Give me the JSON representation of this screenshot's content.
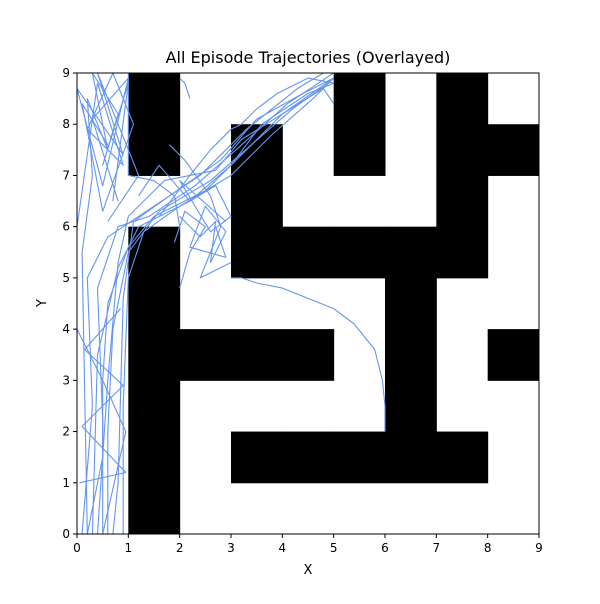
{
  "chart_data": {
    "type": "line",
    "title": "All Episode Trajectories (Overlayed)",
    "xlabel": "X",
    "ylabel": "Y",
    "xlim": [
      0,
      9
    ],
    "ylim": [
      0,
      9
    ],
    "xticks": [
      "0",
      "1",
      "2",
      "3",
      "4",
      "5",
      "6",
      "7",
      "8",
      "9"
    ],
    "yticks": [
      "0",
      "1",
      "2",
      "3",
      "4",
      "5",
      "6",
      "7",
      "8",
      "9"
    ],
    "grid": false,
    "colors": {
      "trajectory": "#6495ED",
      "wall": "#000000",
      "free": "#ffffff"
    },
    "walls": [
      [
        1,
        7,
        1,
        2
      ],
      [
        1,
        8,
        1,
        2
      ],
      [
        1,
        5,
        1,
        2
      ],
      [
        1,
        4,
        1,
        2
      ],
      [
        1,
        3,
        1,
        2
      ],
      [
        1,
        2,
        1,
        2
      ],
      [
        1,
        1,
        1,
        2
      ],
      [
        1,
        0,
        1,
        2
      ],
      [
        3,
        7,
        3,
        4
      ],
      [
        3,
        6,
        3,
        4
      ],
      [
        3,
        5,
        3,
        4
      ],
      [
        4,
        5,
        4,
        5
      ],
      [
        5,
        5,
        5,
        6
      ],
      [
        6,
        5,
        6,
        7
      ],
      [
        7,
        5,
        7,
        8
      ],
      [
        5,
        8,
        5,
        6
      ],
      [
        5,
        7,
        5,
        6
      ],
      [
        7,
        8,
        7,
        8
      ],
      [
        7,
        7,
        7,
        8
      ],
      [
        7,
        6,
        7,
        8
      ],
      [
        8,
        7,
        8,
        9
      ],
      [
        6,
        4,
        6,
        7
      ],
      [
        6,
        3,
        6,
        7
      ],
      [
        6,
        2,
        6,
        7
      ],
      [
        6,
        1,
        6,
        7
      ],
      [
        2,
        3,
        2,
        3
      ],
      [
        3,
        3,
        3,
        4
      ],
      [
        4,
        3,
        4,
        5
      ],
      [
        8,
        3,
        8,
        9
      ],
      [
        3,
        1,
        3,
        4
      ],
      [
        4,
        1,
        4,
        5
      ],
      [
        5,
        1,
        5,
        6
      ],
      [
        7,
        1,
        7,
        8
      ]
    ],
    "trajectories": [
      {
        "x": [
          0.2,
          0.5,
          0.5,
          0.6,
          1.0,
          1.5,
          2.5,
          3.2,
          4.0,
          5.0
        ],
        "y": [
          0.0,
          1.5,
          3.0,
          4.5,
          5.6,
          6.2,
          6.7,
          7.4,
          8.2,
          8.9
        ]
      },
      {
        "x": [
          0.6,
          0.6,
          0.7,
          1.0,
          1.6,
          2.6,
          3.4,
          4.2,
          4.9
        ],
        "y": [
          0.0,
          2.0,
          4.0,
          5.5,
          6.3,
          6.9,
          7.6,
          8.3,
          8.8
        ]
      },
      {
        "x": [
          0.9,
          0.9,
          1.0,
          1.3,
          2.0,
          3.0,
          3.8,
          4.6,
          5.0
        ],
        "y": [
          0.0,
          2.5,
          5.0,
          5.9,
          6.4,
          7.0,
          7.8,
          8.5,
          8.9
        ]
      },
      {
        "x": [
          0.3,
          0.4,
          0.8,
          1.2,
          2.2,
          3.0,
          3.6,
          4.5,
          5.0
        ],
        "y": [
          0.0,
          3.5,
          5.2,
          6.0,
          6.5,
          7.2,
          8.0,
          8.6,
          8.8
        ]
      },
      {
        "x": [
          0.1,
          0.3,
          0.2,
          0.6,
          1.5,
          2.4,
          3.3,
          4.3,
          4.8
        ],
        "y": [
          0.0,
          2.5,
          5.0,
          5.8,
          6.4,
          7.0,
          7.9,
          8.7,
          9.0
        ]
      },
      {
        "x": [
          0.7,
          0.8,
          0.9,
          1.1,
          1.8,
          2.8,
          3.5,
          4.4,
          5.0
        ],
        "y": [
          0.0,
          1.0,
          4.6,
          6.1,
          6.6,
          7.3,
          8.1,
          8.6,
          8.9
        ]
      },
      {
        "x": [
          0.5,
          0.5,
          0.4,
          0.8,
          1.4,
          2.3,
          3.1,
          4.1,
          4.7,
          5.0
        ],
        "y": [
          0.0,
          2.2,
          4.8,
          6.0,
          6.2,
          6.8,
          7.5,
          8.4,
          8.8,
          9.0
        ]
      },
      {
        "x": [
          0.4,
          0.6,
          0.8,
          1.0,
          1.7,
          2.7,
          3.2,
          4.0,
          4.8,
          5.0
        ],
        "y": [
          0.0,
          3.0,
          5.3,
          6.2,
          6.9,
          7.1,
          7.7,
          8.2,
          8.7,
          8.4
        ]
      },
      {
        "x": [
          0.2,
          0.1,
          0.3,
          0.2,
          0.6,
          0.3,
          0.8,
          0.5,
          1.0,
          0.7
        ],
        "y": [
          0.0,
          5.5,
          7.0,
          8.5,
          7.5,
          9.0,
          8.2,
          7.2,
          8.8,
          6.5
        ]
      },
      {
        "x": [
          0.0,
          0.4,
          0.9,
          0.2,
          0.7,
          1.1,
          0.5,
          0.1,
          0.6
        ],
        "y": [
          6.0,
          8.8,
          7.2,
          7.9,
          9.0,
          8.0,
          6.3,
          8.4,
          7.6
        ]
      },
      {
        "x": [
          0.8,
          0.3,
          1.0,
          0.5,
          0.0,
          0.9,
          0.4,
          1.2,
          0.6
        ],
        "y": [
          6.5,
          8.1,
          8.9,
          6.8,
          8.7,
          7.4,
          9.0,
          7.0,
          6.1
        ]
      },
      {
        "x": [
          1.0,
          1.0,
          1.5,
          1.9,
          2.0,
          1.9,
          2.1,
          2.5,
          2.2,
          2.0
        ],
        "y": [
          9.0,
          7.0,
          6.9,
          6.6,
          6.0,
          5.7,
          6.3,
          6.0,
          5.5,
          4.8
        ]
      },
      {
        "x": [
          2.0,
          2.4,
          2.7,
          2.6,
          2.9,
          2.5,
          2.2,
          2.9,
          2.7
        ],
        "y": [
          6.2,
          5.8,
          6.1,
          5.3,
          5.9,
          6.4,
          5.6,
          5.4,
          6.0
        ]
      },
      {
        "x": [
          1.8,
          2.1,
          2.6,
          2.8,
          2.4,
          3.0
        ],
        "y": [
          7.6,
          7.3,
          6.6,
          6.0,
          5.0,
          5.3
        ]
      },
      {
        "x": [
          1.2,
          1.6,
          2.2,
          2.7,
          3.0,
          2.6,
          2.0,
          2.9
        ],
        "y": [
          6.6,
          7.2,
          6.5,
          6.8,
          6.2,
          5.9,
          6.9,
          6.1
        ]
      },
      {
        "x": [
          2.0,
          2.1,
          2.2
        ],
        "y": [
          8.9,
          8.8,
          8.5
        ]
      },
      {
        "x": [
          1.6,
          1.9,
          2.2,
          2.6,
          3.0,
          3.2,
          3.5,
          3.9,
          4.5,
          5.0
        ],
        "y": [
          6.2,
          6.6,
          7.0,
          7.5,
          7.9,
          8.0,
          8.3,
          8.6,
          8.9,
          8.8
        ]
      },
      {
        "x": [
          3.0,
          3.2,
          3.5,
          4.0,
          4.5,
          5.0,
          5.4,
          5.8,
          5.95,
          6.0,
          6.0
        ],
        "y": [
          5.0,
          5.0,
          4.9,
          4.8,
          4.6,
          4.4,
          4.1,
          3.6,
          3.0,
          2.5,
          2.0
        ]
      },
      {
        "x": [
          0.0,
          0.5,
          0.95,
          0.5,
          0.0
        ],
        "y": [
          0.0,
          0.0,
          2.0,
          3.0,
          4.0
        ]
      },
      {
        "x": [
          0.05,
          0.95,
          0.1,
          0.9,
          0.15,
          0.85
        ],
        "y": [
          1.0,
          1.2,
          2.1,
          2.9,
          3.6,
          4.4
        ]
      }
    ]
  }
}
